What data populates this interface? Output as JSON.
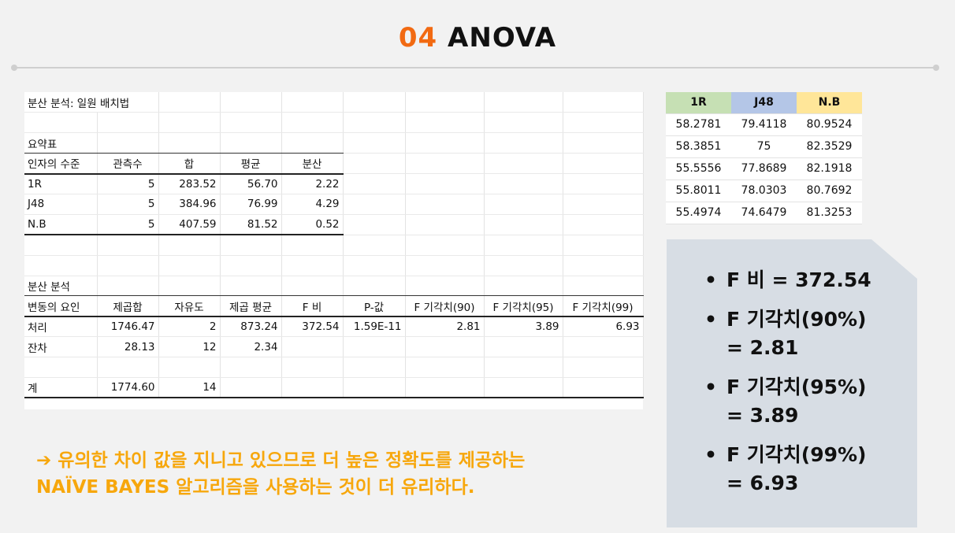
{
  "title": {
    "number": "04",
    "text": "ANOVA"
  },
  "sheet": {
    "heading": "분산 분석: 일원 배치법",
    "summary_label": "요약표",
    "summary_headers": [
      "인자의 수준",
      "관측수",
      "합",
      "평균",
      "분산"
    ],
    "summary_rows": [
      [
        "1R",
        "5",
        "283.52",
        "56.70",
        "2.22"
      ],
      [
        "J48",
        "5",
        "384.96",
        "76.99",
        "4.29"
      ],
      [
        "N.B",
        "5",
        "407.59",
        "81.52",
        "0.52"
      ]
    ],
    "anova_label": "분산 분석",
    "anova_headers": [
      "변동의 요인",
      "제곱합",
      "자유도",
      "제곱 평균",
      "F 비",
      "P-값",
      "F 기각치(90)",
      "F 기각치(95)",
      "F 기각치(99)"
    ],
    "anova_rows": [
      [
        "처리",
        "1746.47",
        "2",
        "873.24",
        "372.54",
        "1.59E-11",
        "2.81",
        "3.89",
        "6.93"
      ],
      [
        "잔차",
        "28.13",
        "12",
        "2.34",
        "",
        "",
        "",
        "",
        ""
      ]
    ],
    "total_row": [
      "계",
      "1774.60",
      "14"
    ]
  },
  "right_table": {
    "headers": [
      "1R",
      "J48",
      "N.B"
    ],
    "header_colors": [
      "#c6e0b4",
      "#b4c6e7",
      "#ffe699"
    ],
    "rows": [
      [
        "58.2781",
        "79.4118",
        "80.9524"
      ],
      [
        "58.3851",
        "75",
        "82.3529"
      ],
      [
        "55.5556",
        "77.8689",
        "82.1918"
      ],
      [
        "55.8011",
        "78.0303",
        "80.7692"
      ],
      [
        "55.4974",
        "74.6479",
        "81.3253"
      ]
    ]
  },
  "panel": {
    "bullet": "•",
    "items": [
      {
        "line1": "F 비 = 372.54",
        "line2": ""
      },
      {
        "line1": "F 기각치(90%)",
        "line2": "= 2.81"
      },
      {
        "line1": "F 기각치(95%)",
        "line2": "= 3.89"
      },
      {
        "line1": "F 기각치(99%)",
        "line2": "= 6.93"
      }
    ]
  },
  "conclusion": {
    "line1": "➔ 유의한 차이 값을 지니고 있으므로 더 높은 정확도를 제공하는",
    "line2": "NAÏVE  BAYES 알고리즘을  사용하는 것이 더 유리하다."
  },
  "colors": {
    "accent": "#f26a12",
    "conclusion": "#f7a70c",
    "panel": "#d7dde4"
  }
}
